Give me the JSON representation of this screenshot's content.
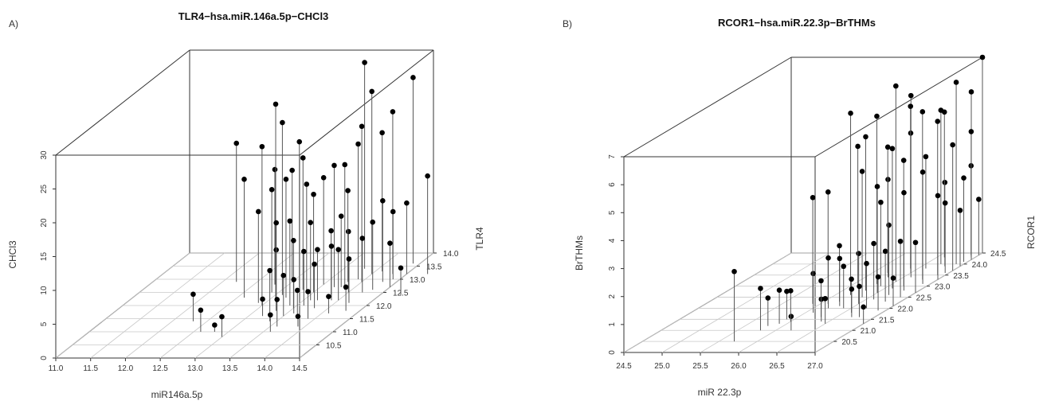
{
  "chart_data": [
    {
      "panel": "A)",
      "type": "scatter3d",
      "title": "TLR4−hsa.miR.146a.5p−CHCl3",
      "xlabel": "miR146a.5p",
      "ylabel": "TLR4",
      "zlabel": "CHCl3",
      "xlim": [
        11.0,
        14.5
      ],
      "ylim": [
        10.0,
        14.0
      ],
      "zlim": [
        0,
        30
      ],
      "x_ticks": [
        "11.0",
        "11.5",
        "12.0",
        "12.5",
        "13.0",
        "13.5",
        "14.0",
        "14.5"
      ],
      "y_ticks": [
        "10.5",
        "11.0",
        "11.5",
        "12.0",
        "12.5",
        "13.0",
        "13.5",
        "14.0"
      ],
      "z_ticks": [
        "0",
        "5",
        "10",
        "15",
        "20",
        "25",
        "30"
      ],
      "points": [
        [
          12.2,
          12.9,
          20.5
        ],
        [
          12.3,
          11.4,
          4.0
        ],
        [
          12.6,
          11.0,
          3.2
        ],
        [
          12.6,
          12.3,
          17.5
        ],
        [
          12.8,
          12.8,
          17.0
        ],
        [
          12.9,
          12.1,
          13.5
        ],
        [
          12.9,
          12.5,
          15.2
        ],
        [
          13.0,
          12.9,
          16.5
        ],
        [
          12.8,
          11.0,
          1.0
        ],
        [
          13.0,
          12.0,
          23.5
        ],
        [
          13.1,
          12.2,
          29.0
        ],
        [
          13.1,
          12.4,
          25.5
        ],
        [
          13.2,
          12.3,
          17.5
        ],
        [
          13.0,
          10.8,
          3.0
        ],
        [
          13.2,
          11.6,
          2.5
        ],
        [
          13.3,
          11.8,
          9.0
        ],
        [
          13.2,
          12.7,
          21.5
        ],
        [
          13.3,
          12.6,
          19.5
        ],
        [
          13.3,
          11.8,
          13.0
        ],
        [
          13.4,
          12.0,
          12.5
        ],
        [
          13.4,
          11.4,
          7.5
        ],
        [
          13.5,
          11.6,
          6.0
        ],
        [
          13.5,
          11.9,
          10.0
        ],
        [
          13.6,
          12.2,
          11.5
        ],
        [
          13.5,
          12.5,
          14.5
        ],
        [
          13.6,
          11.2,
          4.0
        ],
        [
          13.6,
          11.7,
          5.0
        ],
        [
          13.4,
          12.5,
          16.0
        ],
        [
          13.5,
          12.8,
          15.8
        ],
        [
          13.7,
          12.7,
          18.0
        ],
        [
          13.7,
          11.6,
          3.8
        ],
        [
          13.6,
          12.0,
          8.0
        ],
        [
          13.7,
          12.2,
          7.5
        ],
        [
          13.8,
          12.4,
          9.5
        ],
        [
          13.8,
          12.7,
          10.5
        ],
        [
          13.6,
          11.0,
          2.5
        ],
        [
          13.9,
          11.5,
          4.0
        ],
        [
          13.8,
          11.9,
          6.5
        ],
        [
          13.9,
          12.2,
          8.0
        ],
        [
          14.0,
          12.5,
          9.0
        ],
        [
          13.8,
          12.9,
          13.5
        ],
        [
          13.9,
          12.6,
          18.5
        ],
        [
          13.9,
          13.0,
          20.0
        ],
        [
          14.0,
          12.9,
          23.0
        ],
        [
          13.8,
          13.4,
          30.5
        ],
        [
          14.0,
          13.2,
          27.0
        ],
        [
          14.0,
          12.2,
          7.5
        ],
        [
          14.2,
          12.5,
          8.0
        ],
        [
          14.1,
          11.7,
          2.5
        ],
        [
          14.1,
          13.3,
          20.5
        ],
        [
          14.2,
          12.1,
          6.5
        ],
        [
          14.3,
          12.6,
          10.0
        ],
        [
          14.3,
          12.9,
          12.0
        ],
        [
          14.3,
          13.2,
          24.0
        ],
        [
          14.4,
          13.6,
          27.5
        ],
        [
          14.4,
          13.0,
          10.0
        ],
        [
          14.5,
          13.2,
          10.5
        ],
        [
          14.5,
          12.7,
          6.5
        ],
        [
          14.8,
          13.2,
          14.5
        ],
        [
          14.8,
          12.4,
          4.0
        ],
        [
          13.9,
          11.2,
          1.5
        ],
        [
          14.3,
          11.8,
          3.5
        ]
      ]
    },
    {
      "panel": "B)",
      "type": "scatter3d",
      "title": "RCOR1−hsa.miR.22.3p−BrTHMs",
      "xlabel": "miR 22.3p",
      "ylabel": "RCOR1",
      "zlabel": "BrTHMs",
      "xlim": [
        24.5,
        27.0
      ],
      "ylim": [
        20.0,
        24.5
      ],
      "zlim": [
        0,
        7
      ],
      "x_ticks": [
        "24.5",
        "25.0",
        "25.5",
        "26.0",
        "26.5",
        "27.0"
      ],
      "y_ticks": [
        "20.5",
        "21.0",
        "21.5",
        "22.0",
        "22.5",
        "23.0",
        "23.5",
        "24.0",
        "24.5"
      ],
      "z_ticks": [
        "0",
        "1",
        "2",
        "3",
        "4",
        "5",
        "6",
        "7"
      ],
      "points": [
        [
          25.7,
          20.5,
          2.5
        ],
        [
          25.8,
          21.0,
          1.5
        ],
        [
          25.8,
          21.2,
          1.0
        ],
        [
          25.9,
          21.3,
          1.2
        ],
        [
          25.9,
          21.5,
          1.0
        ],
        [
          26.1,
          21.8,
          1.4
        ],
        [
          26.1,
          22.2,
          4.0
        ],
        [
          26.2,
          22.0,
          1.8
        ],
        [
          26.2,
          22.3,
          2.0
        ],
        [
          26.2,
          22.6,
          6.5
        ],
        [
          26.3,
          22.1,
          1.7
        ],
        [
          26.3,
          22.8,
          5.5
        ],
        [
          26.3,
          23.1,
          6.0
        ],
        [
          26.4,
          21.4,
          0.8
        ],
        [
          26.4,
          22.0,
          1.5
        ],
        [
          26.4,
          22.5,
          4.5
        ],
        [
          26.5,
          22.2,
          1.8
        ],
        [
          26.5,
          22.7,
          3.8
        ],
        [
          26.5,
          23.2,
          7.0
        ],
        [
          26.6,
          21.8,
          1.2
        ],
        [
          26.6,
          22.4,
          2.0
        ],
        [
          26.6,
          22.9,
          5.0
        ],
        [
          26.6,
          23.4,
          6.5
        ],
        [
          26.7,
          21.6,
          1.0
        ],
        [
          26.7,
          22.0,
          1.6
        ],
        [
          26.7,
          22.6,
          2.5
        ],
        [
          26.7,
          23.0,
          4.5
        ],
        [
          26.8,
          22.3,
          1.8
        ],
        [
          26.8,
          22.8,
          3.5
        ],
        [
          26.8,
          23.3,
          6.0
        ],
        [
          26.9,
          21.9,
          1.2
        ],
        [
          26.9,
          22.5,
          2.0
        ],
        [
          26.9,
          23.1,
          4.0
        ],
        [
          26.9,
          23.5,
          5.5
        ],
        [
          27.0,
          22.1,
          1.0
        ],
        [
          27.0,
          22.7,
          1.8
        ],
        [
          27.0,
          23.3,
          3.0
        ],
        [
          27.0,
          23.7,
          4.5
        ],
        [
          26.4,
          23.0,
          3.0
        ],
        [
          26.5,
          23.6,
          5.0
        ],
        [
          26.3,
          23.4,
          3.5
        ],
        [
          26.6,
          23.8,
          4.0
        ],
        [
          26.7,
          24.0,
          5.5
        ],
        [
          26.9,
          24.0,
          6.5
        ],
        [
          26.8,
          23.9,
          3.0
        ],
        [
          27.0,
          24.2,
          6.0
        ],
        [
          27.0,
          23.9,
          2.0
        ],
        [
          26.2,
          23.6,
          4.5
        ],
        [
          26.4,
          23.8,
          5.8
        ],
        [
          26.2,
          21.0,
          0.5
        ],
        [
          25.9,
          22.2,
          3.8
        ],
        [
          26.1,
          23.0,
          5.0
        ],
        [
          26.6,
          24.3,
          5.2
        ],
        [
          26.9,
          24.4,
          3.2
        ],
        [
          27.0,
          24.5,
          7.0
        ],
        [
          26.8,
          21.6,
          1.1
        ],
        [
          26.5,
          21.3,
          0.9
        ],
        [
          26.3,
          21.6,
          1.3
        ],
        [
          26.0,
          21.4,
          1.1
        ],
        [
          27.0,
          21.3,
          0.6
        ],
        [
          26.95,
          24.3,
          4.5
        ],
        [
          26.95,
          24.1,
          3.0
        ],
        [
          26.95,
          23.6,
          2.5
        ],
        [
          27.0,
          24.4,
          2.0
        ]
      ]
    }
  ]
}
